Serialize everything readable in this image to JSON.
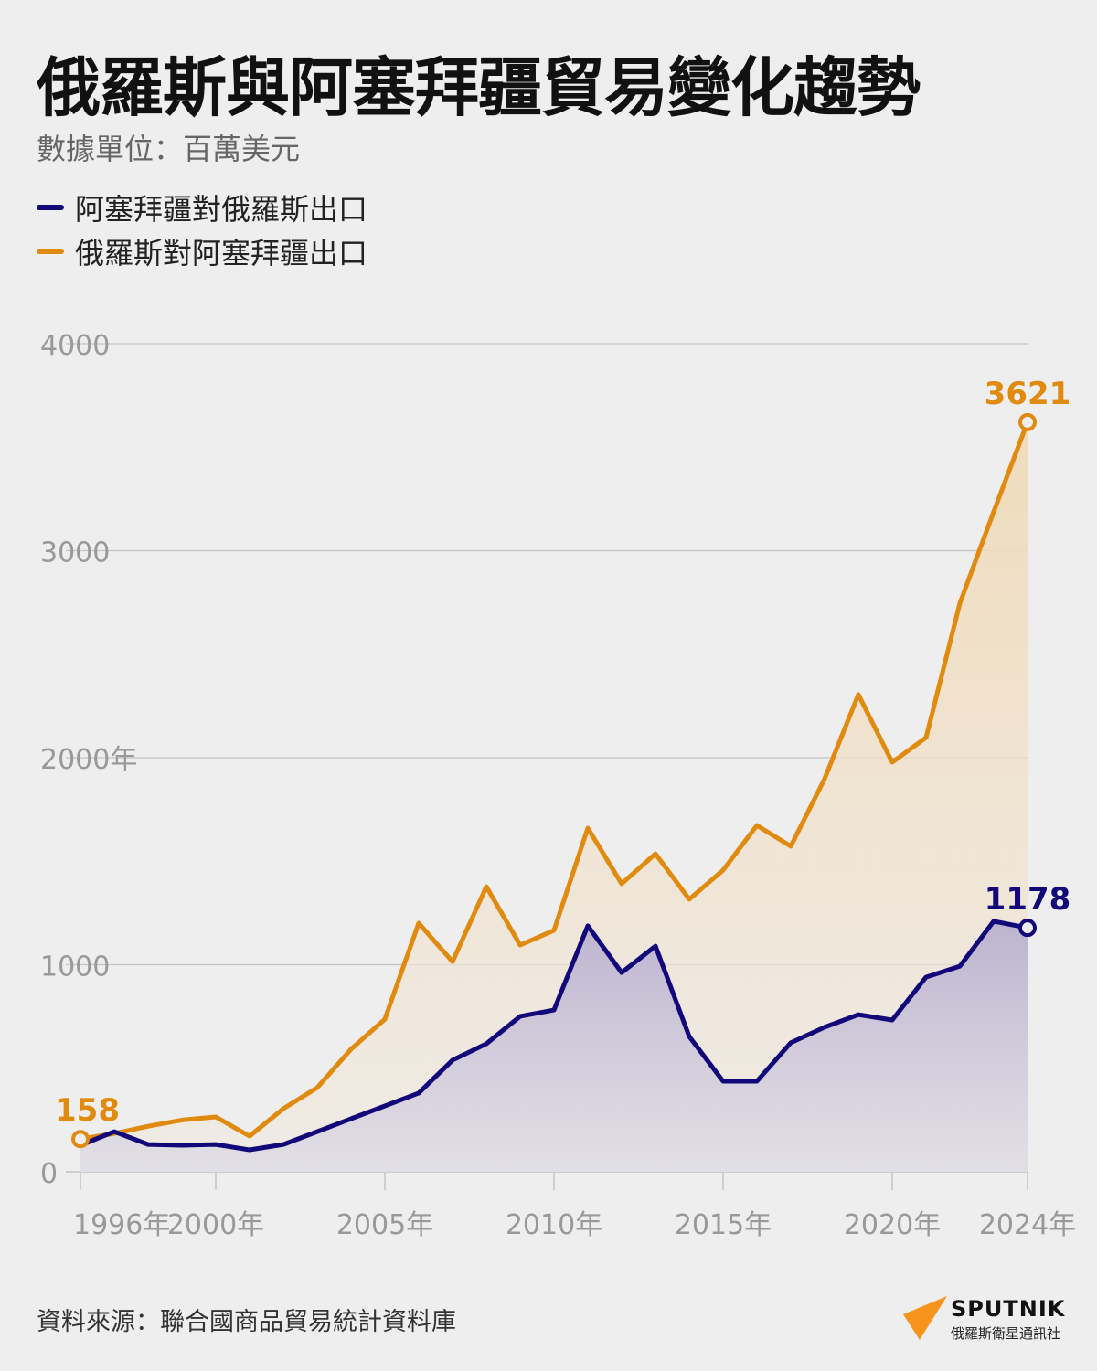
{
  "title": "俄羅斯與阿塞拜疆貿易變化趨勢",
  "subtitle": "數據單位：百萬美元",
  "source": "資料來源：聯合國商品貿易統計資料庫",
  "logo": {
    "brand": "SPUTNIK",
    "sub": "俄羅斯衛星通訊社",
    "color": "#f7941d"
  },
  "chart_data": {
    "type": "area",
    "x": [
      1996,
      1997,
      1998,
      1999,
      2000,
      2001,
      2002,
      2003,
      2004,
      2005,
      2006,
      2007,
      2008,
      2009,
      2010,
      2011,
      2012,
      2013,
      2014,
      2015,
      2016,
      2017,
      2018,
      2019,
      2020,
      2021,
      2022,
      2023,
      2024
    ],
    "series": [
      {
        "name": "阿塞拜疆對俄羅斯出口",
        "color": "#12087a",
        "values": [
          128,
          194,
          132,
          128,
          132,
          106,
          132,
          194,
          256,
          318,
          380,
          539,
          618,
          751,
          781,
          1188,
          962,
          1090,
          653,
          437,
          437,
          623,
          698,
          759,
          733,
          940,
          993,
          1210,
          1178
        ]
      },
      {
        "name": "俄羅斯對阿塞拜疆出口",
        "color": "#e08a10",
        "values": [
          158,
          185,
          220,
          250,
          265,
          172,
          305,
          406,
          592,
          737,
          1201,
          1015,
          1377,
          1095,
          1166,
          1660,
          1391,
          1536,
          1316,
          1457,
          1673,
          1572,
          1898,
          2305,
          1978,
          2097,
          2746,
          3188,
          3621
        ]
      }
    ],
    "annotations": [
      {
        "series": 1,
        "x": 1996,
        "label": "158"
      },
      {
        "series": 1,
        "x": 2024,
        "label": "3621"
      },
      {
        "series": 0,
        "x": 2024,
        "label": "1178"
      }
    ],
    "yticks": [
      0,
      1000,
      2000,
      3000,
      4000
    ],
    "ytick_labels": [
      "0",
      "1000",
      "2000年",
      "3000",
      "4000"
    ],
    "xticks": [
      1996,
      2000,
      2005,
      2010,
      2015,
      2020,
      2024
    ],
    "xtick_labels": [
      "1996年",
      "2000年",
      "2005年",
      "2010年",
      "2015年",
      "2020年",
      "2024年"
    ],
    "ylim": [
      0,
      4000
    ],
    "grid": true,
    "legend_position": "top-left"
  }
}
